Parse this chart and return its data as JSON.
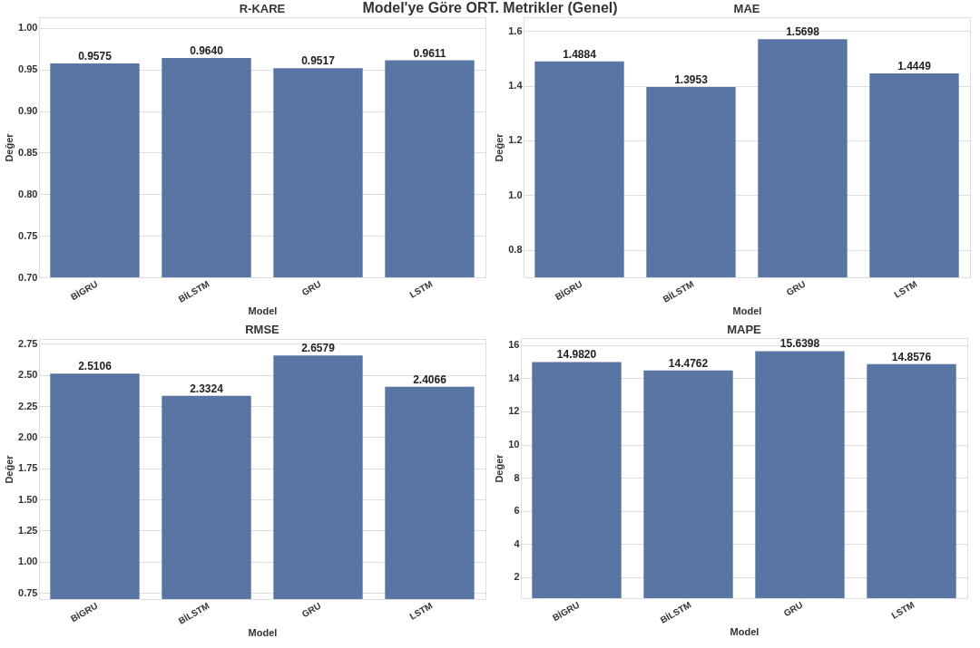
{
  "chart_data": [
    {
      "type": "bar",
      "title": "R-KARE",
      "annotations": [
        "Model'ye Göre ORT. Metrikler (Genel)"
      ],
      "xlabel": "Model",
      "ylabel": "Değer",
      "categories": [
        "BİGRU",
        "BİLSTM",
        "GRU",
        "LSTM"
      ],
      "values": [
        0.9575,
        0.964,
        0.9517,
        0.9611
      ],
      "value_labels": [
        "0.9575",
        "0.9640",
        "0.9517",
        "0.9611"
      ],
      "color": "#5975a4",
      "ylim": [
        0.7,
        1.013
      ],
      "yticks": [
        {
          "value": 0.7,
          "label": "0.70"
        },
        {
          "value": 0.75,
          "label": "0.75"
        },
        {
          "value": 0.8,
          "label": "0.80"
        },
        {
          "value": 0.85,
          "label": "0.85"
        },
        {
          "value": 0.9,
          "label": "0.90"
        },
        {
          "value": 0.95,
          "label": "0.95"
        },
        {
          "value": 1,
          "label": "1.00"
        }
      ],
      "grid": "y"
    },
    {
      "type": "bar",
      "title": "MAE",
      "xlabel": "Model",
      "ylabel": "Değer",
      "categories": [
        "BİGRU",
        "BİLSTM",
        "GRU",
        "LSTM"
      ],
      "values": [
        1.4884,
        1.3953,
        1.5698,
        1.4449
      ],
      "value_labels": [
        "1.4884",
        "1.3953",
        "1.5698",
        "1.4449"
      ],
      "color": "#5975a4",
      "ylim": [
        0.7,
        1.65
      ],
      "yticks": [
        0.8,
        {
          "value": 1,
          "label": "1.0"
        },
        1.2,
        1.4,
        1.6
      ],
      "grid": "y"
    },
    {
      "type": "bar",
      "title": "RMSE",
      "xlabel": "Model",
      "ylabel": "Değer",
      "categories": [
        "BİGRU",
        "BİLSTM",
        "GRU",
        "LSTM"
      ],
      "values": [
        2.5106,
        2.3324,
        2.6579,
        2.4066
      ],
      "value_labels": [
        "2.5106",
        "2.3324",
        "2.6579",
        "2.4066"
      ],
      "color": "#5975a4",
      "ylim": [
        0.7,
        2.79
      ],
      "yticks": [
        0.75,
        {
          "value": 1,
          "label": "1.00"
        },
        1.25,
        {
          "value": 1.5,
          "label": "1.50"
        },
        1.75,
        {
          "value": 2,
          "label": "2.00"
        },
        2.25,
        {
          "value": 2.5,
          "label": "2.50"
        },
        2.75
      ],
      "grid": "y"
    },
    {
      "type": "bar",
      "title": "MAPE",
      "xlabel": "Model",
      "ylabel": "Değer",
      "categories": [
        "BİGRU",
        "BİLSTM",
        "GRU",
        "LSTM"
      ],
      "values": [
        14.982,
        14.4762,
        15.6398,
        14.8576
      ],
      "value_labels": [
        "14.9820",
        "14.4762",
        "15.6398",
        "14.8576"
      ],
      "color": "#5975a4",
      "ylim": [
        0.73,
        16.43
      ],
      "yticks": [
        2,
        4,
        6,
        8,
        10,
        12,
        14,
        16
      ],
      "grid": "y"
    }
  ]
}
